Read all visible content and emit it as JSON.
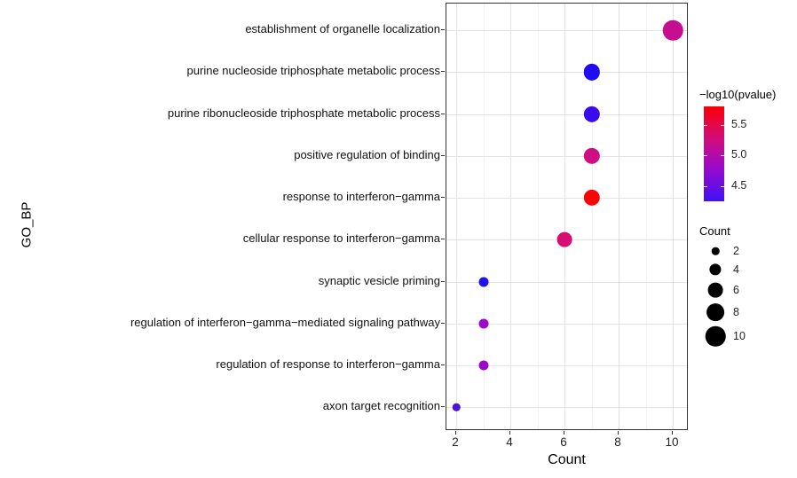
{
  "figure": {
    "background": "#ffffff",
    "panel_border_color": "#333333",
    "grid_major_color": "#e5e5e5",
    "grid_minor_color": "#f2f2f2"
  },
  "chart_data": {
    "type": "scatter",
    "title": "",
    "xlabel": "Count",
    "ylabel": "GO_BP",
    "xlim": [
      1.6,
      10.6
    ],
    "x_ticks": [
      2,
      4,
      6,
      8,
      10
    ],
    "x_minor_ticks": [
      3,
      5,
      7,
      9
    ],
    "grid": true,
    "categories": [
      "establishment of organelle localization",
      "purine nucleoside triphosphate metabolic process",
      "purine ribonucleoside triphosphate metabolic process",
      "positive regulation of binding",
      "response to interferon−gamma",
      "cellular response to interferon−gamma",
      "synaptic vesicle priming",
      "regulation of interferon−gamma−mediated signaling pathway",
      "regulation of response to interferon−gamma",
      "axon target recognition"
    ],
    "points": [
      {
        "category": "establishment of organelle localization",
        "count": 10,
        "neg_log10_pvalue": 5.3,
        "color": "#C60E90"
      },
      {
        "category": "purine nucleoside triphosphate metabolic process",
        "count": 7,
        "neg_log10_pvalue": 4.35,
        "color": "#1F0CF0"
      },
      {
        "category": "purine ribonucleoside triphosphate metabolic process",
        "count": 7,
        "neg_log10_pvalue": 4.5,
        "color": "#3A0BEB"
      },
      {
        "category": "positive regulation of binding",
        "count": 7,
        "neg_log10_pvalue": 5.35,
        "color": "#CE0E82"
      },
      {
        "category": "response to interferon−gamma",
        "count": 7,
        "neg_log10_pvalue": 5.8,
        "color": "#F90508"
      },
      {
        "category": "cellular response to interferon−gamma",
        "count": 6,
        "neg_log10_pvalue": 5.45,
        "color": "#D60E74"
      },
      {
        "category": "synaptic vesicle priming",
        "count": 3,
        "neg_log10_pvalue": 4.35,
        "color": "#1D11F0"
      },
      {
        "category": "regulation of interferon−gamma−mediated signaling pathway",
        "count": 3,
        "neg_log10_pvalue": 5.0,
        "color": "#9A0AC8"
      },
      {
        "category": "regulation of response to interferon−gamma",
        "count": 3,
        "neg_log10_pvalue": 5.0,
        "color": "#9A0AC8"
      },
      {
        "category": "axon target recognition",
        "count": 2,
        "neg_log10_pvalue": 4.55,
        "color": "#4A13DF"
      }
    ],
    "legend_color": {
      "title": "−log10(pvalue)",
      "tick_labels": [
        "5.5",
        "5.0",
        "4.5"
      ],
      "tick_values": [
        5.5,
        5.0,
        4.5
      ],
      "range": [
        4.25,
        5.8
      ],
      "gradient_top_to_bottom": [
        {
          "stop": 0.0,
          "color": "#FB0007"
        },
        {
          "stop": 0.35,
          "color": "#D00D7F"
        },
        {
          "stop": 0.65,
          "color": "#9A0ACB"
        },
        {
          "stop": 1.0,
          "color": "#3E12F5"
        }
      ],
      "position": "right"
    },
    "legend_size": {
      "title": "Count",
      "entries": [
        2,
        4,
        6,
        8,
        10
      ],
      "dot_color": "#000000",
      "position": "right"
    }
  }
}
